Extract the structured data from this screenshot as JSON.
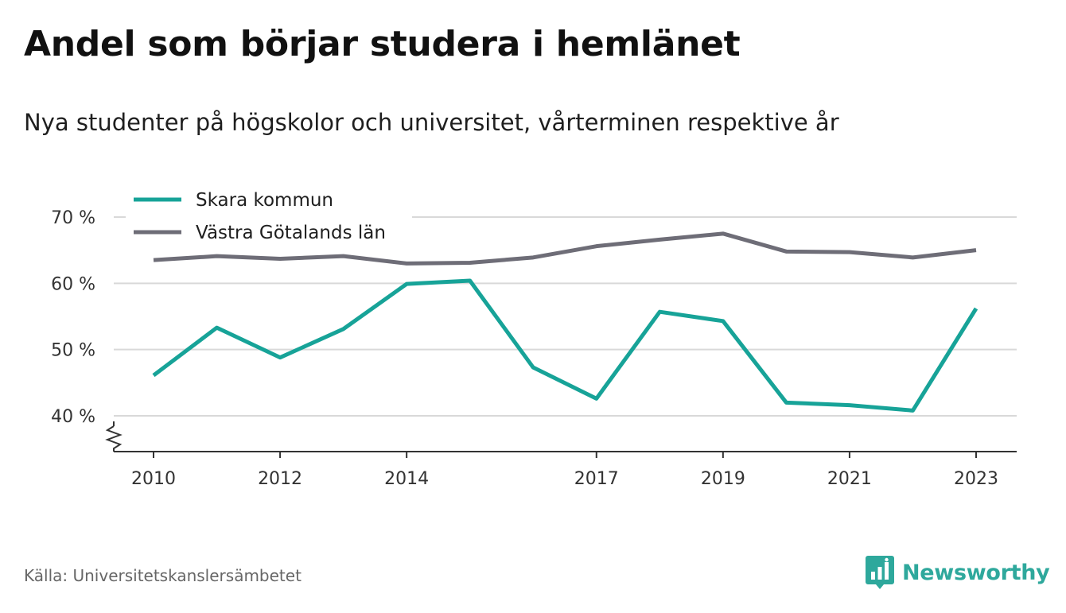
{
  "header": {
    "title": "Andel som börjar studera i hemlänet",
    "subtitle": "Nya studenter på högskolor och universitet, vårterminen respektive år"
  },
  "footer": {
    "source": "Källa: Universitetskanslersämbetet",
    "brand": "Newsworthy",
    "brand_icon": "bar-chart-speech-bubble-icon",
    "brand_color": "#2ea89c"
  },
  "chart_data": {
    "type": "line",
    "x": [
      2010,
      2011,
      2012,
      2013,
      2014,
      2015,
      2016,
      2017,
      2018,
      2019,
      2020,
      2021,
      2022,
      2023
    ],
    "x_tick_values": [
      2010,
      2012,
      2014,
      2017,
      2019,
      2021,
      2023
    ],
    "x_tick_labels": [
      "2010",
      "2012",
      "2014",
      "2017",
      "2019",
      "2021",
      "2023"
    ],
    "y_tick_values": [
      40,
      50,
      60,
      70
    ],
    "y_tick_labels": [
      "40 %",
      "50 %",
      "60 %",
      "70 %"
    ],
    "ylim": [
      35,
      70
    ],
    "y_axis_break": true,
    "grid": "horizontal",
    "legend_position": "top-left",
    "series": [
      {
        "name": "Skara kommun",
        "color": "#17a398",
        "values": [
          46.1,
          53.3,
          48.8,
          53.1,
          59.9,
          60.4,
          47.3,
          42.6,
          55.7,
          54.3,
          42.0,
          41.6,
          40.8,
          56.2
        ]
      },
      {
        "name": "Västra Götalands län",
        "color": "#6e6d77",
        "values": [
          63.5,
          64.1,
          63.7,
          64.1,
          63.0,
          63.1,
          63.9,
          65.6,
          66.6,
          67.5,
          64.8,
          64.7,
          63.9,
          65.0
        ]
      }
    ]
  }
}
